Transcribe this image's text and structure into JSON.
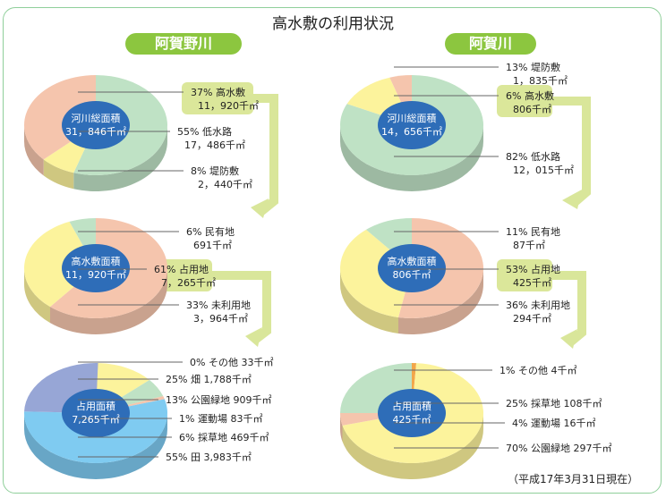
{
  "title": "高水敷の利用状況",
  "date_note": "（平成17年3月31日現在）",
  "colors": {
    "green": "#bfe2c5",
    "salmon": "#f5c5ad",
    "yellow": "#fcf39c",
    "blue": "#7fcbf1",
    "purple": "#97a6d6",
    "orange": "#f2a64a",
    "center": "#2e6db8",
    "arrow": "#d9e69a"
  },
  "rivers": [
    {
      "name": "阿賀野川",
      "pies": [
        {
          "center": [
            "河川総面積",
            "31，846千㎡"
          ],
          "slices": [
            {
              "pct": 55,
              "color": "green"
            },
            {
              "pct": 8,
              "color": "yellow"
            },
            {
              "pct": 37,
              "color": "salmon"
            }
          ],
          "labels": [
            [
              "37%  高水敷",
              "11，920千㎡"
            ],
            [
              "55%  低水路",
              "17，486千㎡"
            ],
            [
              "8%  堤防敷",
              "2，440千㎡"
            ]
          ]
        },
        {
          "center": [
            "高水敷面積",
            "11，920千㎡"
          ],
          "slices": [
            {
              "pct": 61,
              "color": "salmon"
            },
            {
              "pct": 33,
              "color": "yellow"
            },
            {
              "pct": 6,
              "color": "green"
            }
          ],
          "labels": [
            [
              "6%  民有地",
              "691千㎡"
            ],
            [
              "61%  占用地",
              "7，265千㎡"
            ],
            [
              "33%  未利用地",
              "3，964千㎡"
            ]
          ]
        },
        {
          "center": [
            "占用面積",
            "7,265千㎡"
          ],
          "slices": [
            {
              "pct": 0.5,
              "color": "orange"
            },
            {
              "pct": 13,
              "color": "yellow"
            },
            {
              "pct": 6,
              "color": "green"
            },
            {
              "pct": 1,
              "color": "salmon"
            },
            {
              "pct": 55,
              "color": "blue"
            },
            {
              "pct": 25,
              "color": "purple"
            }
          ],
          "labels": [
            [
              "0%  その他  33千㎡"
            ],
            [
              "25%  畑  1,788千㎡"
            ],
            [
              "13%   公園緑地  909千㎡"
            ],
            [
              "1%   運動場  83千㎡"
            ],
            [
              "6%   採草地  469千㎡"
            ],
            [
              "55%   田  3,983千㎡"
            ]
          ]
        }
      ]
    },
    {
      "name": "阿賀川",
      "pies": [
        {
          "center": [
            "河川総面積",
            "14，656千㎡"
          ],
          "slices": [
            {
              "pct": 82,
              "color": "green"
            },
            {
              "pct": 13,
              "color": "yellow"
            },
            {
              "pct": 5,
              "color": "salmon"
            }
          ],
          "labels": [
            [
              "13%  堤防敷",
              "1，835千㎡"
            ],
            [
              "6%  高水敷",
              "806千㎡"
            ],
            [
              "82%  低水路",
              "12，015千㎡"
            ]
          ]
        },
        {
          "center": [
            "高水敷面積",
            "806千㎡"
          ],
          "slices": [
            {
              "pct": 53,
              "color": "salmon"
            },
            {
              "pct": 36,
              "color": "yellow"
            },
            {
              "pct": 11,
              "color": "green"
            }
          ],
          "labels": [
            [
              "11%  民有地",
              "87千㎡"
            ],
            [
              "53%  占用地",
              "425千㎡"
            ],
            [
              "36%  未利用地",
              "294千㎡"
            ]
          ]
        },
        {
          "center": [
            "占用面積",
            "425千㎡"
          ],
          "slices": [
            {
              "pct": 1,
              "color": "orange"
            },
            {
              "pct": 70,
              "color": "yellow"
            },
            {
              "pct": 4,
              "color": "salmon"
            },
            {
              "pct": 25,
              "color": "green"
            }
          ],
          "labels": [
            [
              "1% その他  4千㎡"
            ],
            [
              "25%  採草地  108千㎡"
            ],
            [
              "4%   運動場  16千㎡"
            ],
            [
              "70%  公園緑地  297千㎡"
            ]
          ]
        }
      ]
    }
  ]
}
